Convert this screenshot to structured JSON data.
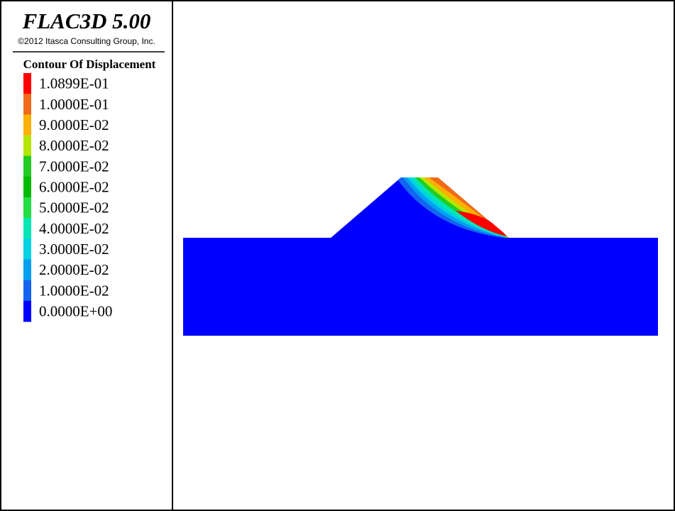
{
  "header": {
    "title": "FLAC3D 5.00",
    "copyright": "©2012 Itasca Consulting Group, Inc."
  },
  "legend": {
    "title": "Contour Of Displacement",
    "items": [
      {
        "label": "1.0899E-01",
        "color": "#ff0000"
      },
      {
        "label": "1.0000E-01",
        "color": "#f06a1c"
      },
      {
        "label": "9.0000E-02",
        "color": "#ffb000"
      },
      {
        "label": "8.0000E-02",
        "color": "#b4e600"
      },
      {
        "label": "7.0000E-02",
        "color": "#22cc22"
      },
      {
        "label": "6.0000E-02",
        "color": "#00bb00"
      },
      {
        "label": "5.0000E-02",
        "color": "#22dd44"
      },
      {
        "label": "4.0000E-02",
        "color": "#00e6b4"
      },
      {
        "label": "3.0000E-02",
        "color": "#00d2e6"
      },
      {
        "label": "2.0000E-02",
        "color": "#00a0f0"
      },
      {
        "label": "1.0000E-02",
        "color": "#1464f0"
      },
      {
        "label": "0.0000E+00",
        "color": "#0000ff"
      }
    ]
  }
}
